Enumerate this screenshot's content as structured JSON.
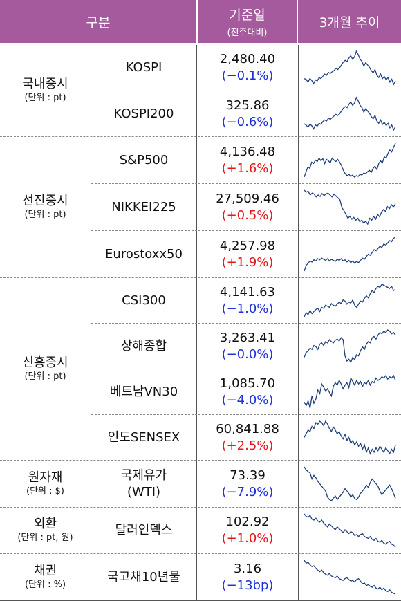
{
  "header": {
    "category": "구분",
    "base_date": "기준일",
    "base_date_sub": "(전주대비)",
    "trend": "3개월 추이"
  },
  "groups": [
    {
      "name": "국내증시",
      "unit": "(단위 : pt)"
    },
    {
      "name": "선진증시",
      "unit": "(단위 : pt)"
    },
    {
      "name": "신흥증시",
      "unit": "(단위 : pt)"
    },
    {
      "name": "원자재",
      "unit": "(단위 : $)"
    },
    {
      "name": "외환",
      "unit": "(단위 : pt, 원)"
    },
    {
      "name": "채권",
      "unit": "(단위 : %)"
    }
  ],
  "rows": [
    {
      "name": "KOSPI",
      "value": "2,480.40",
      "change": "(−0.1%)",
      "dir": "down",
      "trend": [
        56,
        55,
        50,
        56,
        53,
        47,
        54,
        52,
        58,
        56,
        60,
        64,
        62,
        67,
        65,
        68,
        70,
        74,
        72,
        75,
        80,
        85,
        88,
        86,
        92,
        96,
        90,
        94,
        104,
        98,
        90,
        86,
        78,
        84,
        80,
        76,
        70,
        66,
        72,
        62,
        58,
        64,
        56,
        60,
        54,
        58,
        50,
        55,
        46,
        52
      ]
    },
    {
      "name": "KOSPI200",
      "value": "325.86",
      "change": "(−0.6%)",
      "dir": "down",
      "trend": [
        56,
        54,
        50,
        55,
        53,
        47,
        54,
        52,
        57,
        55,
        60,
        63,
        61,
        66,
        64,
        67,
        70,
        73,
        71,
        74,
        79,
        84,
        87,
        85,
        91,
        95,
        89,
        93,
        103,
        97,
        89,
        85,
        77,
        83,
        79,
        75,
        69,
        65,
        71,
        61,
        57,
        63,
        55,
        59,
        53,
        57,
        49,
        54,
        45,
        51
      ]
    },
    {
      "name": "S&P500",
      "value": "4,136.48",
      "change": "(+1.6%)",
      "dir": "up",
      "trend": [
        20,
        28,
        35,
        33,
        42,
        40,
        45,
        43,
        48,
        44,
        47,
        40,
        46,
        44,
        41,
        48,
        45,
        43,
        46,
        42,
        37,
        30,
        25,
        22,
        24,
        21,
        23,
        20,
        22,
        21,
        24,
        23,
        26,
        25,
        28,
        30,
        27,
        33,
        36,
        31,
        40,
        44,
        41,
        50,
        48,
        55,
        60,
        57,
        64,
        70
      ]
    },
    {
      "name": "NIKKEI225",
      "value": "27,509.46",
      "change": "(+0.5%)",
      "dir": "up",
      "trend": [
        80,
        76,
        78,
        70,
        74,
        72,
        66,
        70,
        67,
        73,
        69,
        72,
        74,
        70,
        66,
        72,
        68,
        64,
        60,
        44,
        38,
        30,
        22,
        26,
        20,
        24,
        18,
        22,
        15,
        18,
        12,
        16,
        10,
        22,
        18,
        26,
        20,
        30,
        25,
        35,
        40,
        36,
        46,
        42,
        50,
        45,
        52
      ]
    },
    {
      "name": "Eurostoxx50",
      "value": "4,257.98",
      "change": "(+1.9%)",
      "dir": "up",
      "trend": [
        12,
        22,
        26,
        30,
        28,
        32,
        30,
        34,
        32,
        35,
        33,
        31,
        34,
        30,
        33,
        31,
        29,
        33,
        31,
        34,
        30,
        32,
        28,
        31,
        27,
        30,
        26,
        29,
        27,
        31,
        35,
        33,
        38,
        42,
        40,
        45,
        50,
        48,
        52,
        56,
        54,
        60,
        58,
        62,
        66,
        64,
        70,
        72
      ]
    },
    {
      "name": "CSI300",
      "value": "4,141.63",
      "change": "(−1.0%)",
      "dir": "down",
      "trend": [
        20,
        28,
        24,
        32,
        26,
        30,
        34,
        36,
        30,
        38,
        36,
        42,
        40,
        38,
        45,
        42,
        40,
        44,
        48,
        45,
        52,
        50,
        44,
        48,
        46,
        52,
        42,
        38,
        44,
        50,
        48,
        55,
        60,
        56,
        64,
        70,
        66,
        74,
        78,
        76,
        82,
        80,
        78,
        76,
        74,
        78,
        70,
        72
      ]
    },
    {
      "name": "상해종합",
      "value": "3,263.41",
      "change": "(−0.0%)",
      "dir": "down",
      "trend": [
        28,
        35,
        38,
        42,
        40,
        46,
        44,
        40,
        48,
        50,
        46,
        52,
        50,
        55,
        52,
        50,
        54,
        56,
        53,
        58,
        55,
        30,
        22,
        25,
        20,
        28,
        24,
        32,
        30,
        38,
        44,
        40,
        48,
        52,
        50,
        58,
        60,
        56,
        62,
        66,
        64,
        68,
        66,
        70,
        68,
        64,
        66,
        62
      ]
    },
    {
      "name": "베트남VN30",
      "value": "1,085.70",
      "change": "(−4.0%)",
      "dir": "down",
      "trend": [
        30,
        24,
        32,
        20,
        40,
        28,
        35,
        50,
        44,
        60,
        55,
        48,
        52,
        46,
        40,
        56,
        62,
        58,
        66,
        60,
        52,
        58,
        62,
        54,
        70,
        64,
        58,
        66,
        60,
        64,
        56,
        62,
        60,
        66,
        58,
        64,
        62,
        70,
        66,
        68,
        72,
        70,
        74,
        68,
        72,
        70,
        74,
        66
      ]
    },
    {
      "name": "인도SENSEX",
      "value": "60,841.88",
      "change": "(+2.5%)",
      "dir": "up",
      "trend": [
        50,
        55,
        60,
        58,
        65,
        62,
        70,
        68,
        72,
        70,
        66,
        72,
        68,
        62,
        58,
        64,
        60,
        55,
        58,
        52,
        48,
        54,
        46,
        50,
        42,
        46,
        40,
        44,
        38,
        42,
        34,
        40,
        30,
        36,
        28,
        34,
        30,
        36,
        32,
        38,
        34,
        30,
        36,
        32,
        28,
        34,
        30,
        40
      ]
    },
    {
      "name": "국제유가\n(WTI)",
      "value": "73.39",
      "change": "(−7.9%)",
      "dir": "down",
      "trend": [
        80,
        75,
        72,
        70,
        60,
        66,
        62,
        56,
        52,
        48,
        44,
        40,
        30,
        26,
        24,
        28,
        32,
        26,
        30,
        34,
        38,
        44,
        40,
        36,
        30,
        34,
        28,
        26,
        30,
        36,
        40,
        44,
        50,
        46,
        54,
        60,
        56,
        52,
        48,
        40,
        34,
        38,
        42,
        46,
        50,
        44,
        36,
        28
      ]
    },
    {
      "name": "달러인덱스",
      "value": "102.92",
      "change": "(+1.0%)",
      "dir": "up",
      "trend": [
        85,
        80,
        78,
        82,
        74,
        72,
        76,
        70,
        68,
        72,
        66,
        62,
        58,
        64,
        60,
        56,
        52,
        58,
        54,
        50,
        46,
        52,
        48,
        44,
        48,
        46,
        40,
        42,
        38,
        42,
        44,
        38,
        36,
        34,
        38,
        32,
        30,
        34,
        28,
        26,
        30,
        24,
        22,
        26,
        28,
        22,
        20,
        16
      ]
    },
    {
      "name": "국고채10년물",
      "value": "3.16",
      "change": "(−13bp)",
      "dir": "down",
      "trend": [
        85,
        78,
        80,
        74,
        70,
        72,
        66,
        62,
        58,
        62,
        56,
        52,
        50,
        54,
        48,
        46,
        44,
        48,
        42,
        40,
        38,
        42,
        44,
        40,
        36,
        38,
        34,
        40,
        42,
        36,
        30,
        32,
        26,
        28,
        24,
        22,
        26,
        20,
        18,
        22,
        16,
        20,
        14,
        12,
        16,
        10,
        8,
        6
      ]
    }
  ]
}
